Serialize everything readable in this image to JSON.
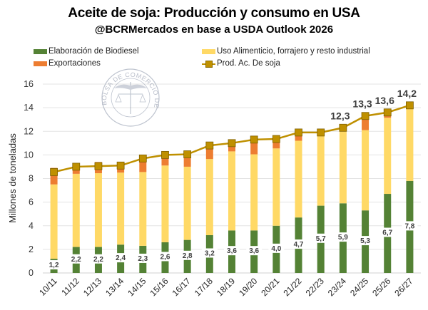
{
  "chart_data": {
    "type": "bar",
    "title": "Aceite de soja: Producción y consumo en USA",
    "subtitle": "@BCRMercados en base a USDA Outlook 2026",
    "xlabel": "",
    "ylabel": "Millones de toneladas",
    "ylim": [
      0,
      16
    ],
    "yticks": [
      0,
      2,
      4,
      6,
      8,
      10,
      12,
      14,
      16
    ],
    "grid": true,
    "legend_position": "top",
    "watermark": "BOLSA DE COMERCIO DE ROSARIO",
    "categories": [
      "10/11",
      "11/12",
      "12/13",
      "13/14",
      "14/15",
      "15/16",
      "16/17",
      "17/18",
      "18/19",
      "19/20",
      "20/21",
      "21/22",
      "22/23",
      "23/24",
      "24/25",
      "25/26",
      "26/27"
    ],
    "series": [
      {
        "name": "Elaboración de Biodiesel",
        "kind": "stacked-bar",
        "color": "#548235",
        "values": [
          1.2,
          2.2,
          2.2,
          2.4,
          2.3,
          2.6,
          2.8,
          3.2,
          3.6,
          3.6,
          4.0,
          4.7,
          5.7,
          5.9,
          5.3,
          6.7,
          7.8
        ],
        "labels": [
          "1,2",
          "2,2",
          "2,2",
          "2,4",
          "2,3",
          "2,6",
          "2,8",
          "3,2",
          "3,6",
          "3,6",
          "4,0",
          "4,7",
          "5,7",
          "5,9",
          "5,3",
          "6,7",
          "7,8"
        ]
      },
      {
        "name": "Uso Alimenticio, forrajero y resto industrial",
        "kind": "stacked-bar",
        "color": "#FFD966",
        "values": [
          6.3,
          6.2,
          6.25,
          6.1,
          6.25,
          6.5,
          6.2,
          6.45,
          6.7,
          6.45,
          6.55,
          6.5,
          5.9,
          6.2,
          6.8,
          6.45,
          6.4
        ]
      },
      {
        "name": "Exportaciones",
        "kind": "stacked-bar",
        "color": "#ED7D31",
        "values": [
          1.4,
          0.75,
          0.95,
          0.8,
          0.9,
          0.95,
          1.0,
          0.95,
          0.8,
          1.35,
          0.7,
          0.7,
          0.5,
          0.2,
          1.35,
          0.45,
          0.1
        ]
      },
      {
        "name": "Prod. Ac. De soja",
        "kind": "line",
        "color": "#BF9000",
        "values": [
          8.55,
          9.0,
          9.05,
          9.1,
          9.7,
          10.0,
          10.05,
          10.8,
          11.0,
          11.3,
          11.35,
          11.9,
          11.9,
          12.3,
          13.3,
          13.6,
          14.2
        ],
        "labels": [
          "",
          "",
          "",
          "",
          "",
          "",
          "",
          "",
          "",
          "",
          "",
          "",
          "",
          "12,3",
          "13,3",
          "13,6",
          "14,2"
        ]
      }
    ]
  }
}
